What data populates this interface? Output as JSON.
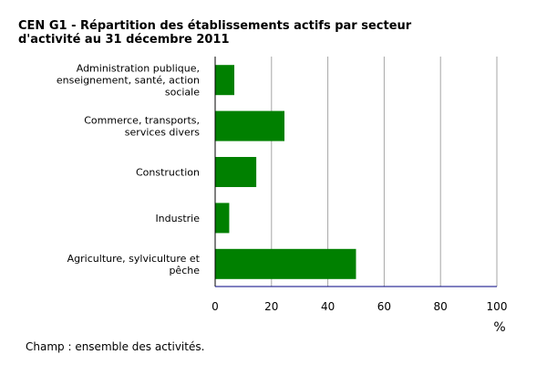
{
  "chart_data": {
    "type": "bar",
    "orientation": "horizontal",
    "title": "CEN G1 - Répartition des établissements actifs par secteur d'activité au 31 décembre 2011",
    "categories": [
      "Administration publique, enseignement, santé, action sociale",
      "Commerce, transports, services divers",
      "Construction",
      "Industrie",
      "Agriculture, sylviculture et pêche"
    ],
    "category_lines": [
      [
        "Administration publique,",
        "enseignement, santé, action",
        "sociale"
      ],
      [
        "Commerce, transports,",
        "services divers"
      ],
      [
        "Construction"
      ],
      [
        "Industrie"
      ],
      [
        "Agriculture, sylviculture et",
        "pêche"
      ]
    ],
    "values": [
      6.8,
      24.6,
      14.6,
      5.0,
      50.0
    ],
    "xlim": [
      0,
      100
    ],
    "xticks": [
      0,
      20,
      40,
      60,
      80,
      100
    ],
    "xlabel": "%",
    "ylabel": "",
    "grid": "vertical",
    "bar_color": "#008000"
  },
  "note": "Champ : ensemble des activités."
}
